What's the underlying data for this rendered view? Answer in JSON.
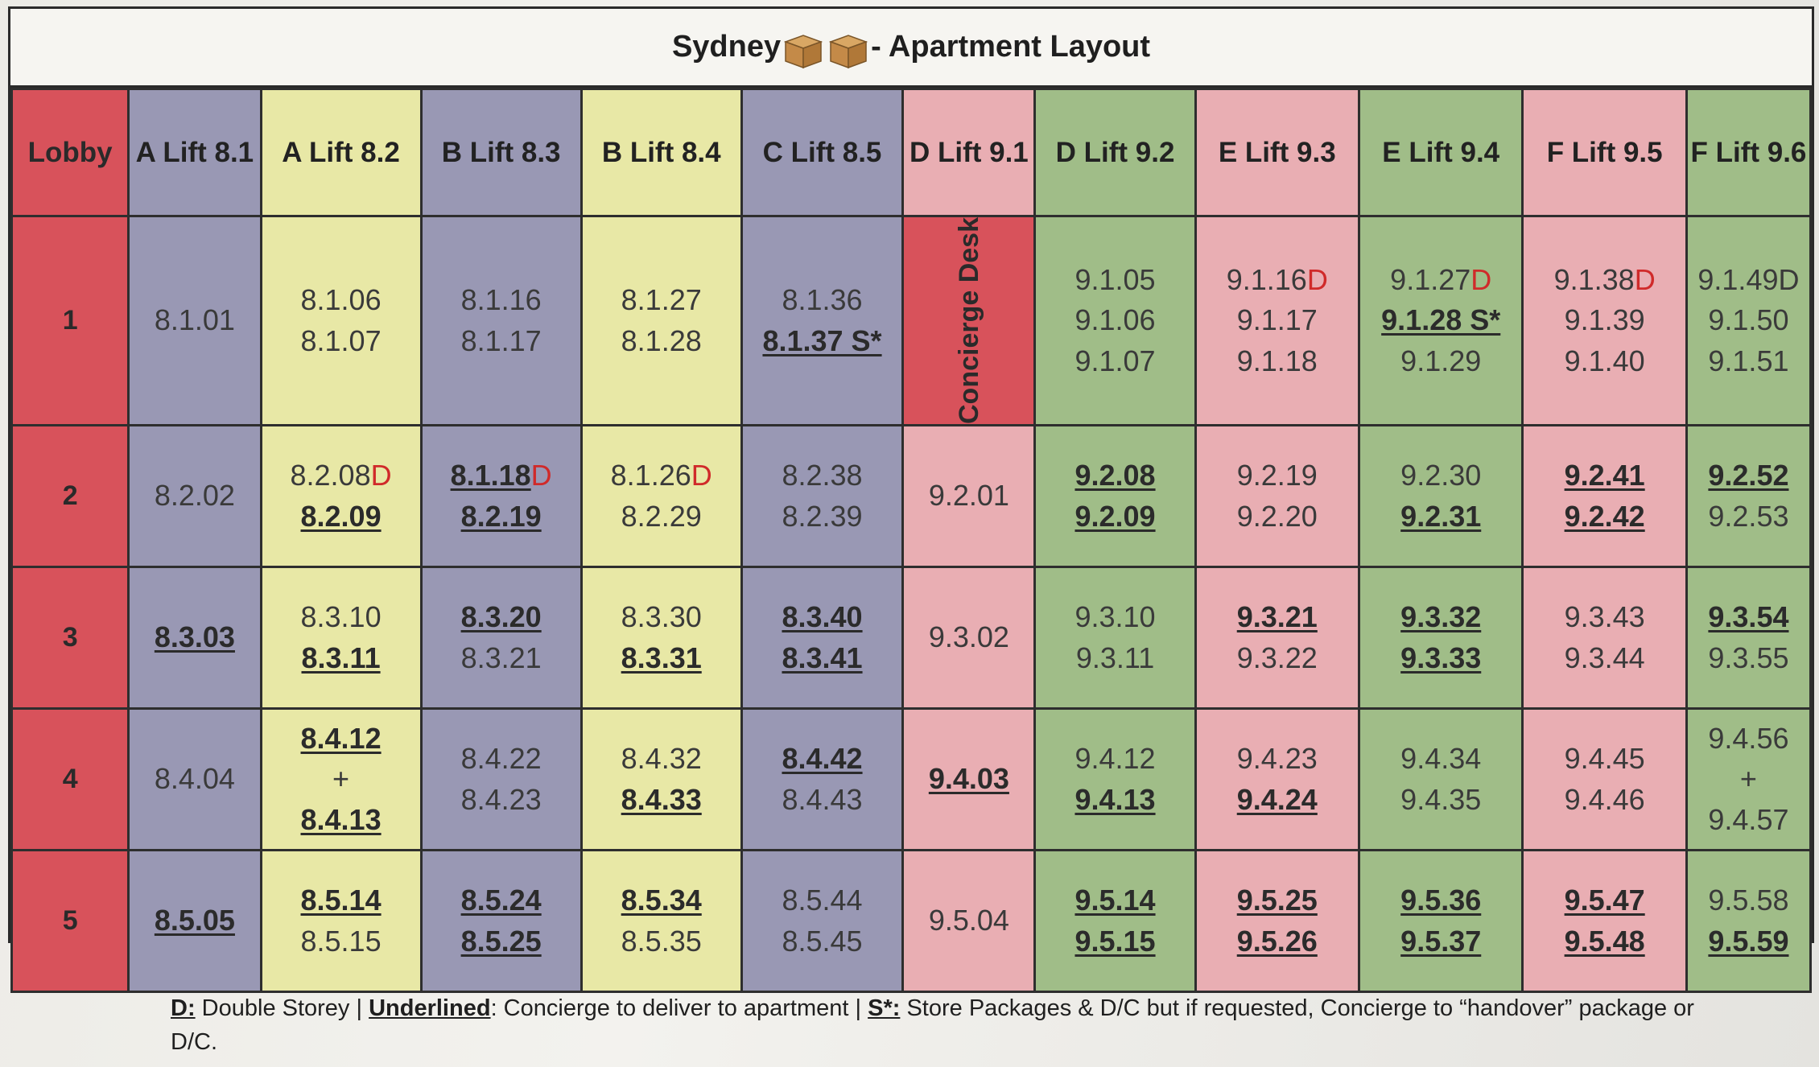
{
  "title": {
    "left": "Sydney",
    "right": "- Apartment Layout",
    "icon": "cardboard-box-icon"
  },
  "colors": {
    "red": "#d8525b",
    "purple": "#9998b4",
    "yellow": "#e8e8a6",
    "pink": "#e9aeb3",
    "green": "#a0bd88"
  },
  "headers": [
    "Lobby",
    "A Lift 8.1",
    "A Lift 8.2",
    "B Lift 8.3",
    "B Lift 8.4",
    "C Lift 8.5",
    "D Lift 9.1",
    "D Lift 9.2",
    "E Lift 9.3",
    "E Lift 9.4",
    "F Lift 9.5",
    "F Lift 9.6"
  ],
  "concierge": "Concierge Desk",
  "rows": [
    {
      "floor": "1",
      "cells": [
        [
          [
            "8.1.01",
            false,
            ""
          ]
        ],
        [
          [
            "8.1.06",
            false,
            ""
          ],
          [
            "8.1.07",
            false,
            ""
          ]
        ],
        [
          [
            "8.1.16",
            false,
            ""
          ],
          [
            "8.1.17",
            false,
            ""
          ]
        ],
        [
          [
            "8.1.27",
            false,
            ""
          ],
          [
            "8.1.28",
            false,
            ""
          ]
        ],
        [
          [
            "8.1.36",
            false,
            ""
          ],
          [
            "8.1.37 S*",
            true,
            ""
          ]
        ],
        "CONCIERGE",
        [
          [
            "9.1.05",
            false,
            ""
          ],
          [
            "9.1.06",
            false,
            ""
          ],
          [
            "9.1.07",
            false,
            ""
          ]
        ],
        [
          [
            "9.1.16",
            false,
            "D"
          ],
          [
            "9.1.17",
            false,
            ""
          ],
          [
            "9.1.18",
            false,
            ""
          ]
        ],
        [
          [
            "9.1.27",
            false,
            "D"
          ],
          [
            "9.1.28 S*",
            true,
            ""
          ],
          [
            "9.1.29",
            false,
            ""
          ]
        ],
        [
          [
            "9.1.38",
            false,
            "D"
          ],
          [
            "9.1.39",
            false,
            ""
          ],
          [
            "9.1.40",
            false,
            ""
          ]
        ],
        [
          [
            "9.1.49D",
            false,
            ""
          ],
          [
            "9.1.50",
            false,
            ""
          ],
          [
            "9.1.51",
            false,
            ""
          ]
        ]
      ]
    },
    {
      "floor": "2",
      "cells": [
        [
          [
            "8.2.02",
            false,
            ""
          ]
        ],
        [
          [
            "8.2.08",
            false,
            "D"
          ],
          [
            "8.2.09",
            true,
            ""
          ]
        ],
        [
          [
            "8.1.18",
            true,
            "D"
          ],
          [
            "8.2.19",
            true,
            ""
          ]
        ],
        [
          [
            "8.1.26",
            false,
            "D"
          ],
          [
            "8.2.29",
            false,
            ""
          ]
        ],
        [
          [
            "8.2.38",
            false,
            ""
          ],
          [
            "8.2.39",
            false,
            ""
          ]
        ],
        [
          [
            "9.2.01",
            false,
            ""
          ]
        ],
        [
          [
            "9.2.08",
            true,
            ""
          ],
          [
            "9.2.09",
            true,
            ""
          ]
        ],
        [
          [
            "9.2.19",
            false,
            ""
          ],
          [
            "9.2.20",
            false,
            ""
          ]
        ],
        [
          [
            "9.2.30",
            false,
            ""
          ],
          [
            "9.2.31",
            true,
            ""
          ]
        ],
        [
          [
            "9.2.41",
            true,
            ""
          ],
          [
            "9.2.42",
            true,
            ""
          ]
        ],
        [
          [
            "9.2.52",
            true,
            ""
          ],
          [
            "9.2.53",
            false,
            ""
          ]
        ]
      ]
    },
    {
      "floor": "3",
      "cells": [
        [
          [
            "8.3.03",
            true,
            ""
          ]
        ],
        [
          [
            "8.3.10",
            false,
            ""
          ],
          [
            "8.3.11",
            true,
            ""
          ]
        ],
        [
          [
            "8.3.20",
            true,
            ""
          ],
          [
            "8.3.21",
            false,
            ""
          ]
        ],
        [
          [
            "8.3.30",
            false,
            ""
          ],
          [
            "8.3.31",
            true,
            ""
          ]
        ],
        [
          [
            "8.3.40",
            true,
            ""
          ],
          [
            "8.3.41",
            true,
            ""
          ]
        ],
        [
          [
            "9.3.02",
            false,
            ""
          ]
        ],
        [
          [
            "9.3.10",
            false,
            ""
          ],
          [
            "9.3.11",
            false,
            ""
          ]
        ],
        [
          [
            "9.3.21",
            true,
            ""
          ],
          [
            "9.3.22",
            false,
            ""
          ]
        ],
        [
          [
            "9.3.32",
            true,
            ""
          ],
          [
            "9.3.33",
            true,
            ""
          ]
        ],
        [
          [
            "9.3.43",
            false,
            ""
          ],
          [
            "9.3.44",
            false,
            ""
          ]
        ],
        [
          [
            "9.3.54",
            true,
            ""
          ],
          [
            "9.3.55",
            false,
            ""
          ]
        ]
      ]
    },
    {
      "floor": "4",
      "cells": [
        [
          [
            "8.4.04",
            false,
            ""
          ]
        ],
        [
          [
            "8.4.12",
            true,
            ""
          ],
          [
            "+",
            false,
            ""
          ],
          [
            "8.4.13",
            true,
            ""
          ]
        ],
        [
          [
            "8.4.22",
            false,
            ""
          ],
          [
            "8.4.23",
            false,
            ""
          ]
        ],
        [
          [
            "8.4.32",
            false,
            ""
          ],
          [
            "8.4.33",
            true,
            ""
          ]
        ],
        [
          [
            "8.4.42",
            true,
            ""
          ],
          [
            "8.4.43",
            false,
            ""
          ]
        ],
        [
          [
            "9.4.03",
            true,
            ""
          ]
        ],
        [
          [
            "9.4.12",
            false,
            ""
          ],
          [
            "9.4.13",
            true,
            ""
          ]
        ],
        [
          [
            "9.4.23",
            false,
            ""
          ],
          [
            "9.4.24",
            true,
            ""
          ]
        ],
        [
          [
            "9.4.34",
            false,
            ""
          ],
          [
            "9.4.35",
            false,
            ""
          ]
        ],
        [
          [
            "9.4.45",
            false,
            ""
          ],
          [
            "9.4.46",
            false,
            ""
          ]
        ],
        [
          [
            "9.4.56",
            false,
            ""
          ],
          [
            "+",
            false,
            ""
          ],
          [
            "9.4.57",
            false,
            ""
          ]
        ]
      ]
    },
    {
      "floor": "5",
      "cells": [
        [
          [
            "8.5.05",
            true,
            ""
          ]
        ],
        [
          [
            "8.5.14",
            true,
            ""
          ],
          [
            "8.5.15",
            false,
            ""
          ]
        ],
        [
          [
            "8.5.24",
            true,
            ""
          ],
          [
            "8.5.25",
            true,
            ""
          ]
        ],
        [
          [
            "8.5.34",
            true,
            ""
          ],
          [
            "8.5.35",
            false,
            ""
          ]
        ],
        [
          [
            "8.5.44",
            false,
            ""
          ],
          [
            "8.5.45",
            false,
            ""
          ]
        ],
        [
          [
            "9.5.04",
            false,
            ""
          ]
        ],
        [
          [
            "9.5.14",
            true,
            ""
          ],
          [
            "9.5.15",
            true,
            ""
          ]
        ],
        [
          [
            "9.5.25",
            true,
            ""
          ],
          [
            "9.5.26",
            true,
            ""
          ]
        ],
        [
          [
            "9.5.36",
            true,
            ""
          ],
          [
            "9.5.37",
            true,
            ""
          ]
        ],
        [
          [
            "9.5.47",
            true,
            ""
          ],
          [
            "9.5.48",
            true,
            ""
          ]
        ],
        [
          [
            "9.5.58",
            false,
            ""
          ],
          [
            "9.5.59",
            true,
            ""
          ]
        ]
      ]
    }
  ],
  "legend": {
    "d_key": "D:",
    "d_text": " Double Storey | ",
    "u_key": "Underlined",
    "u_text": ": Concierge to deliver to apartment | ",
    "s_key": "S*:",
    "s_text": " Store Packages & D/C but if requested, Concierge to “handover” package or D/C."
  }
}
